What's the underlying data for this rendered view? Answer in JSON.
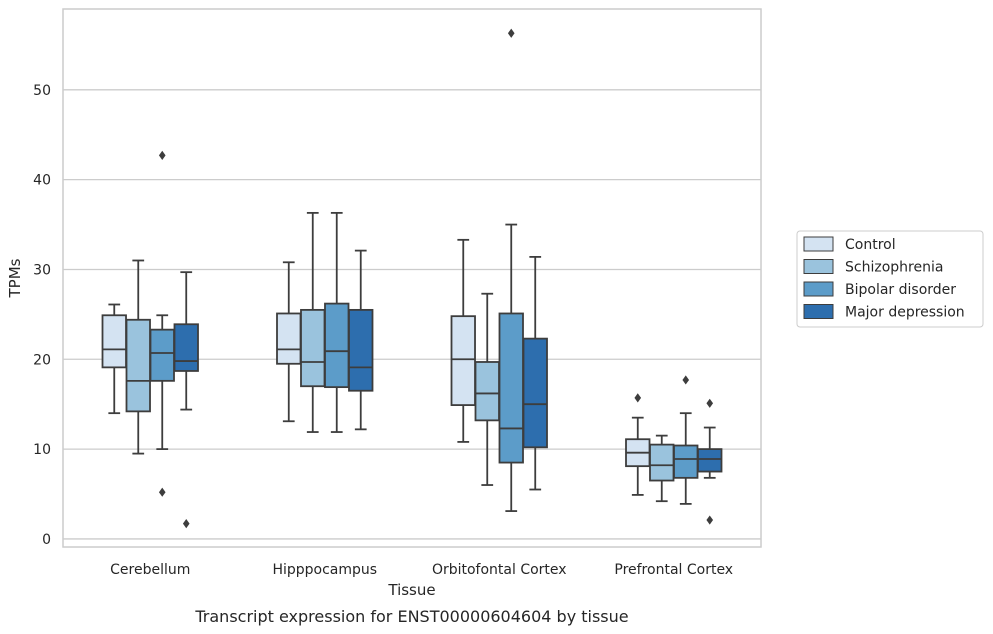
{
  "chart_data": {
    "type": "box",
    "caption": "Transcript expression for ENST00000604604 by tissue",
    "xlabel": "Tissue",
    "ylabel": "TPMs",
    "ylim": [
      -0.9,
      59
    ],
    "yticks": [
      0,
      10,
      20,
      30,
      40,
      50
    ],
    "grid": "horizontal",
    "legend_position": "right",
    "categories": [
      "Cerebellum",
      "Hipppocampus",
      "Orbitofontal Cortex",
      "Prefrontal Cortex"
    ],
    "series": [
      {
        "name": "Control",
        "color": "#d4e3f2",
        "boxes": [
          {
            "whisker_low": 14,
            "q1": 19.1,
            "median": 21.1,
            "q3": 24.9,
            "whisker_high": 26.1,
            "outliers": []
          },
          {
            "whisker_low": 13.1,
            "q1": 19.5,
            "median": 21.1,
            "q3": 25.1,
            "whisker_high": 30.8,
            "outliers": []
          },
          {
            "whisker_low": 10.8,
            "q1": 14.9,
            "median": 20.0,
            "q3": 24.8,
            "whisker_high": 33.3,
            "outliers": []
          },
          {
            "whisker_low": 4.9,
            "q1": 8.1,
            "median": 9.6,
            "q3": 11.1,
            "whisker_high": 13.5,
            "outliers": [
              15.7
            ]
          }
        ]
      },
      {
        "name": "Schizophrenia",
        "color": "#9ac3dd",
        "boxes": [
          {
            "whisker_low": 9.5,
            "q1": 14.2,
            "median": 17.6,
            "q3": 24.4,
            "whisker_high": 31.0,
            "outliers": []
          },
          {
            "whisker_low": 11.9,
            "q1": 17.0,
            "median": 19.7,
            "q3": 25.5,
            "whisker_high": 36.3,
            "outliers": []
          },
          {
            "whisker_low": 6.0,
            "q1": 13.2,
            "median": 16.2,
            "q3": 19.7,
            "whisker_high": 27.3,
            "outliers": []
          },
          {
            "whisker_low": 4.2,
            "q1": 6.5,
            "median": 8.2,
            "q3": 10.5,
            "whisker_high": 11.5,
            "outliers": []
          }
        ]
      },
      {
        "name": "Bipolar disorder",
        "color": "#5c9cc9",
        "boxes": [
          {
            "whisker_low": 10.0,
            "q1": 17.6,
            "median": 20.7,
            "q3": 23.3,
            "whisker_high": 24.9,
            "outliers": [
              42.7,
              5.2
            ]
          },
          {
            "whisker_low": 11.9,
            "q1": 16.9,
            "median": 20.9,
            "q3": 26.2,
            "whisker_high": 36.3,
            "outliers": []
          },
          {
            "whisker_low": 3.1,
            "q1": 8.5,
            "median": 12.3,
            "q3": 25.1,
            "whisker_high": 35.0,
            "outliers": [
              56.3
            ]
          },
          {
            "whisker_low": 3.9,
            "q1": 6.8,
            "median": 8.9,
            "q3": 10.4,
            "whisker_high": 14.0,
            "outliers": [
              17.7
            ]
          }
        ]
      },
      {
        "name": "Major depression",
        "color": "#2d6eae",
        "boxes": [
          {
            "whisker_low": 14.4,
            "q1": 18.7,
            "median": 19.8,
            "q3": 23.9,
            "whisker_high": 29.7,
            "outliers": [
              1.7
            ]
          },
          {
            "whisker_low": 12.2,
            "q1": 16.5,
            "median": 19.1,
            "q3": 25.5,
            "whisker_high": 32.1,
            "outliers": []
          },
          {
            "whisker_low": 5.5,
            "q1": 10.2,
            "median": 15.0,
            "q3": 22.3,
            "whisker_high": 31.4,
            "outliers": []
          },
          {
            "whisker_low": 6.8,
            "q1": 7.5,
            "median": 8.9,
            "q3": 10.0,
            "whisker_high": 12.4,
            "outliers": [
              15.1,
              2.1
            ]
          }
        ]
      }
    ]
  }
}
